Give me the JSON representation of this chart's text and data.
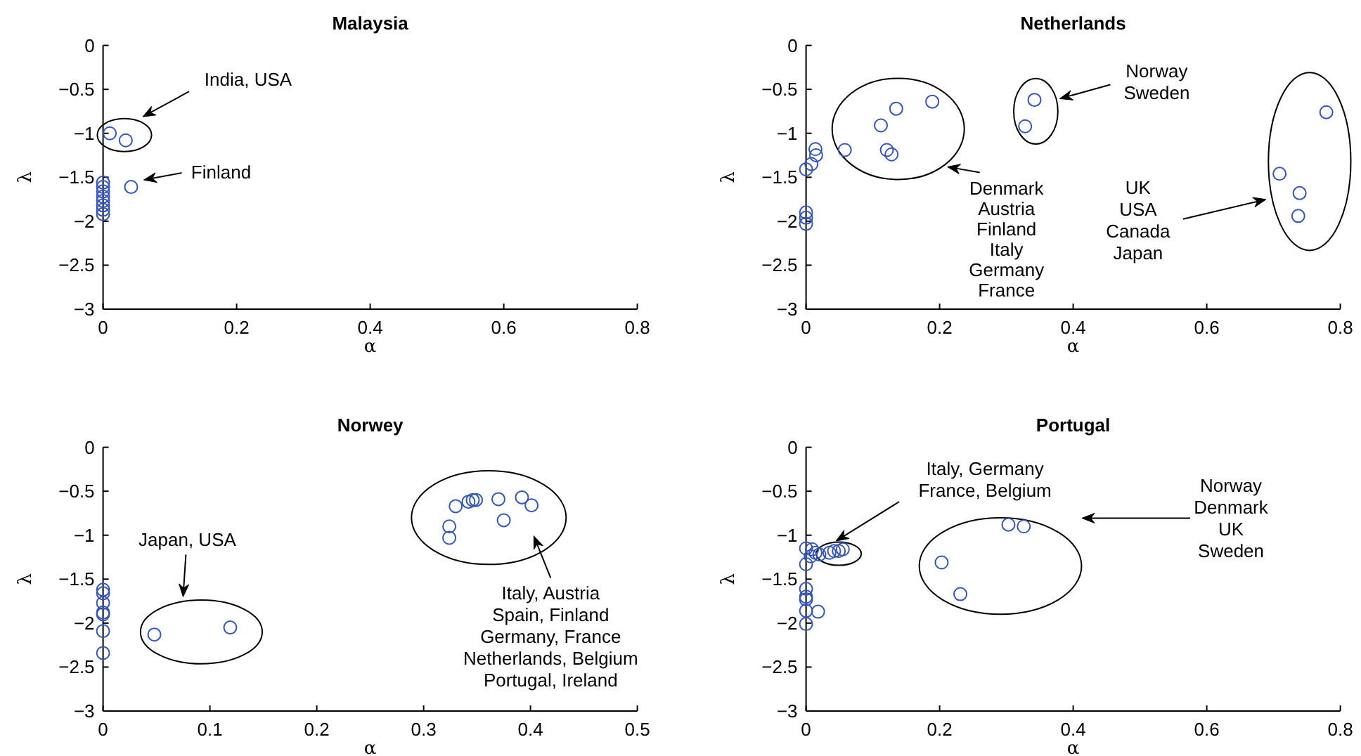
{
  "chart_data": [
    {
      "type": "scatter",
      "title": "Malaysia",
      "xlabel": "α",
      "ylabel": "λ",
      "xlim": [
        0,
        0.8
      ],
      "ylim": [
        -3,
        0
      ],
      "xticks": [
        0,
        0.2,
        0.4,
        0.6,
        0.8
      ],
      "yticks": [
        -3,
        -2.5,
        -2,
        -1.5,
        -1,
        -0.5,
        0
      ],
      "marker": "circle",
      "series": [
        {
          "color": "#3355bb",
          "x": [
            0.01,
            0.034,
            0.042,
            0,
            0,
            0,
            0,
            0,
            0,
            0,
            0
          ],
          "values": [
            -1.0,
            -1.08,
            -1.61,
            -1.56,
            -1.61,
            -1.66,
            -1.72,
            -1.77,
            -1.82,
            -1.87,
            -1.92
          ]
        }
      ],
      "annotations": [
        "India, USA",
        "Finland"
      ]
    },
    {
      "type": "scatter",
      "title": "Netherlands",
      "xlabel": "α",
      "ylabel": "λ",
      "xlim": [
        0,
        0.8
      ],
      "ylim": [
        -3,
        0
      ],
      "xticks": [
        0,
        0.2,
        0.4,
        0.6,
        0.8
      ],
      "yticks": [
        -3,
        -2.5,
        -2,
        -1.5,
        -1,
        -0.5,
        0
      ],
      "marker": "circle",
      "series": [
        {
          "color": "#3355bb",
          "x": [
            0.014,
            0.015,
            0.008,
            0,
            0,
            0,
            0,
            0.058,
            0.112,
            0.135,
            0.189,
            0.121,
            0.128,
            0.342,
            0.328,
            0.779,
            0.709,
            0.739,
            0.737
          ],
          "values": [
            -1.18,
            -1.25,
            -1.35,
            -1.41,
            -1.9,
            -1.96,
            -2.03,
            -1.19,
            -0.91,
            -0.72,
            -0.64,
            -1.19,
            -1.24,
            -0.62,
            -0.92,
            -0.76,
            -1.46,
            -1.68,
            -1.94
          ]
        }
      ],
      "annotations": [
        "Denmark\nAustria\nFinland\nItaly\nGermany\nFrance",
        "Norway\nSweden",
        "UK\nUSA\nCanada\nJapan"
      ]
    },
    {
      "type": "scatter",
      "title": "Norwey",
      "xlabel": "α",
      "ylabel": "λ",
      "xlim": [
        0,
        0.5
      ],
      "ylim": [
        -3,
        0
      ],
      "xticks": [
        0,
        0.1,
        0.2,
        0.3,
        0.4,
        0.5
      ],
      "yticks": [
        -3,
        -2.5,
        -2,
        -1.5,
        -1,
        -0.5,
        0
      ],
      "marker": "circle",
      "series": [
        {
          "color": "#3355bb",
          "x": [
            0,
            0,
            0,
            0,
            0,
            0,
            0,
            0.048,
            0.119,
            0.324,
            0.324,
            0.33,
            0.342,
            0.346,
            0.349,
            0.37,
            0.392,
            0.401,
            0.375
          ],
          "values": [
            -1.62,
            -1.66,
            -1.77,
            -1.88,
            -1.9,
            -2.09,
            -2.34,
            -2.13,
            -2.05,
            -1.03,
            -0.9,
            -0.67,
            -0.62,
            -0.6,
            -0.6,
            -0.59,
            -0.57,
            -0.66,
            -0.83
          ]
        }
      ],
      "annotations": [
        "Japan, USA",
        "Italy, Austria\nSpain, Finland\nGermany, France\nNetherlands, Belgium\nPortugal, Ireland"
      ]
    },
    {
      "type": "scatter",
      "title": "Portugal",
      "xlabel": "α",
      "ylabel": "λ",
      "xlim": [
        0,
        0.8
      ],
      "ylim": [
        -3,
        0
      ],
      "xticks": [
        0,
        0.2,
        0.4,
        0.6,
        0.8
      ],
      "yticks": [
        -3,
        -2.5,
        -2,
        -1.5,
        -1,
        -0.5,
        0
      ],
      "marker": "circle",
      "series": [
        {
          "color": "#3355bb",
          "x": [
            0,
            0.009,
            0.014,
            0.007,
            0.02,
            0,
            0,
            0,
            0,
            0,
            0.018,
            0,
            0.035,
            0.042,
            0.049,
            0.055,
            0.303,
            0.326,
            0.203,
            0.231
          ],
          "values": [
            -1.15,
            -1.16,
            -1.2,
            -1.24,
            -1.22,
            -1.33,
            -1.61,
            -1.7,
            -1.73,
            -1.86,
            -1.87,
            -2.01,
            -1.2,
            -1.18,
            -1.18,
            -1.16,
            -0.88,
            -0.9,
            -1.31,
            -1.67
          ]
        }
      ],
      "annotations": [
        "Italy, Germany\nFrance, Belgium",
        "Norway\nDenmark\nUK\nSweden"
      ]
    }
  ]
}
